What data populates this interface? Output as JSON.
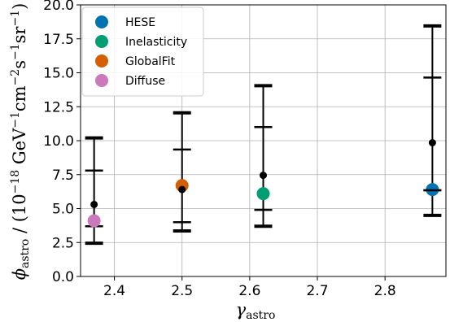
{
  "chart_data": {
    "type": "scatter",
    "title": "",
    "xlabel": {
      "main": "γ",
      "sub": "astro"
    },
    "ylabel": {
      "main": "ϕ",
      "sub": "astro",
      "rest": " / (10",
      "exp1": "−18",
      "rest2": " GeV",
      "exp2": "−1",
      "rest3": "cm",
      "exp3": "−2",
      "rest4": "s",
      "exp4": "−1",
      "rest5": "sr",
      "exp5": "−1",
      "rest6": ")"
    },
    "xlim": [
      2.35,
      2.89
    ],
    "ylim": [
      0.0,
      20.0
    ],
    "x_ticks": [
      2.4,
      2.5,
      2.6,
      2.7,
      2.8
    ],
    "x_tick_labels": [
      "2.4",
      "2.5",
      "2.6",
      "2.7",
      "2.8"
    ],
    "y_ticks": [
      0.0,
      2.5,
      5.0,
      7.5,
      10.0,
      12.5,
      15.0,
      17.5,
      20.0
    ],
    "y_tick_labels": [
      "0.0",
      "2.5",
      "5.0",
      "7.5",
      "10.0",
      "12.5",
      "15.0",
      "17.5",
      "20.0"
    ],
    "grid": true,
    "legend_position": "upper-left",
    "series": [
      {
        "name": "HESE",
        "color": "#0173b2",
        "points": [
          {
            "x": 2.87,
            "y": 6.4
          }
        ]
      },
      {
        "name": "Inelasticity",
        "color": "#029e73",
        "points": [
          {
            "x": 2.62,
            "y": 6.1
          }
        ]
      },
      {
        "name": "GlobalFit",
        "color": "#d55e00",
        "points": [
          {
            "x": 2.5,
            "y": 6.7
          }
        ]
      },
      {
        "name": "Diffuse",
        "color": "#cc78bc",
        "points": [
          {
            "x": 2.37,
            "y": 4.1
          }
        ]
      }
    ],
    "error_bars": [
      {
        "x": 2.37,
        "center": 5.3,
        "inner": [
          3.7,
          7.8
        ],
        "outer": [
          2.45,
          10.2
        ]
      },
      {
        "x": 2.5,
        "center": 6.4,
        "inner": [
          4.0,
          9.35
        ],
        "outer": [
          3.35,
          12.05
        ]
      },
      {
        "x": 2.62,
        "center": 7.45,
        "inner": [
          4.9,
          11.0
        ],
        "outer": [
          3.7,
          14.05
        ]
      },
      {
        "x": 2.87,
        "center": 9.85,
        "inner": [
          6.35,
          14.65
        ],
        "outer": [
          4.5,
          18.45
        ]
      }
    ]
  }
}
